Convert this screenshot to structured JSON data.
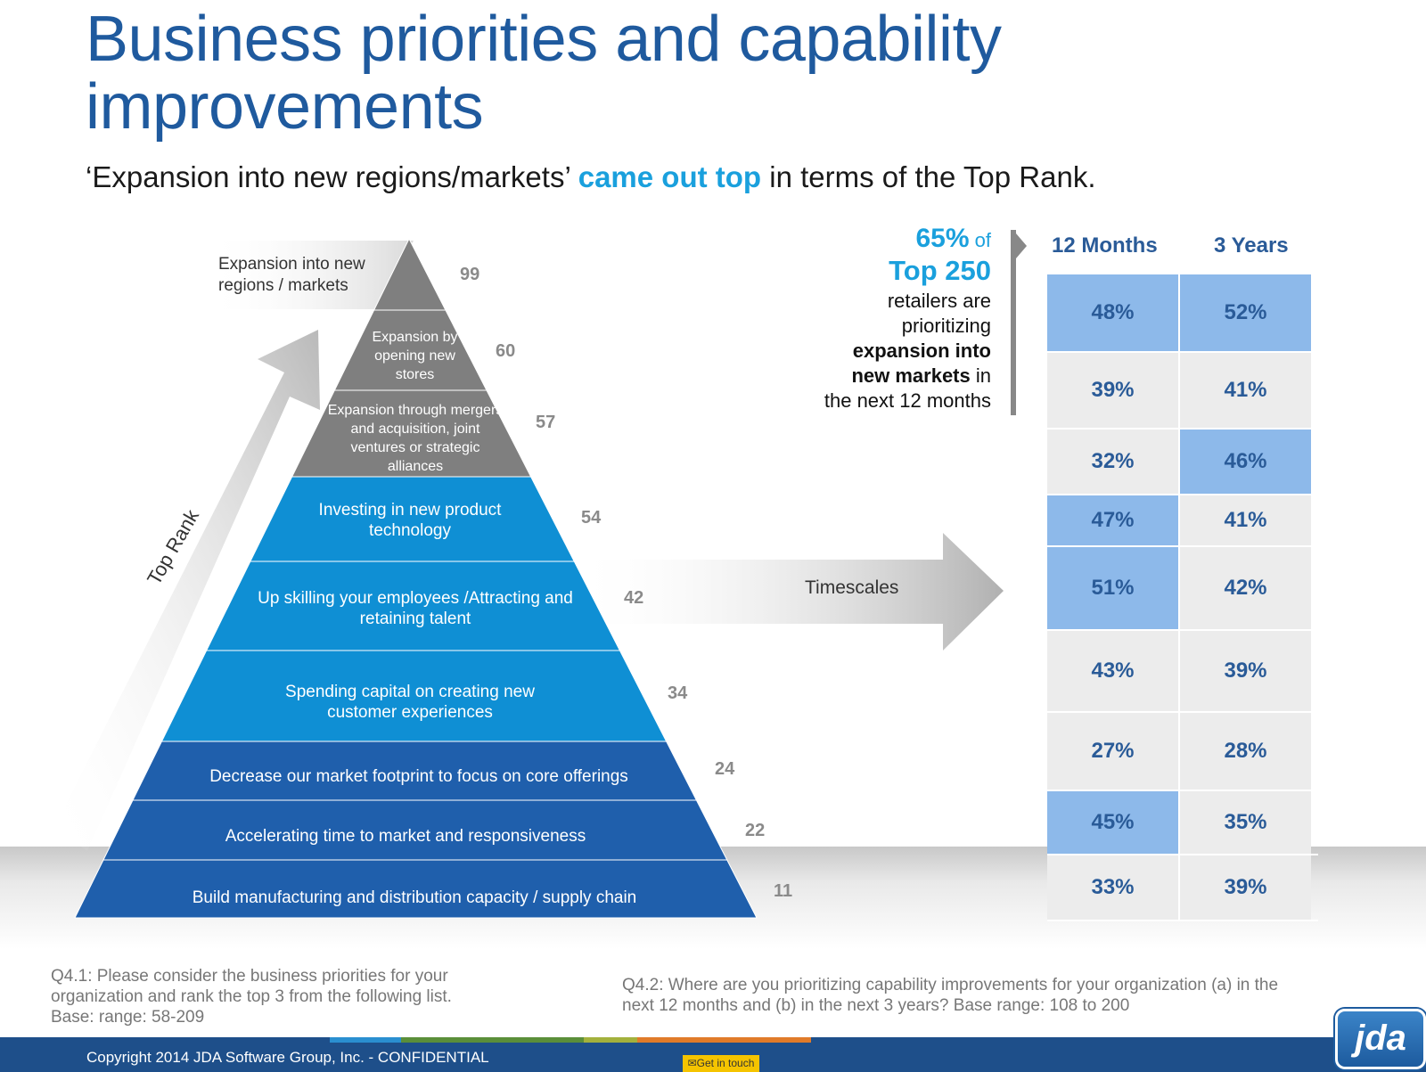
{
  "title": "Business priorities and capability improvements",
  "subtitle": {
    "before": "‘Expansion into new regions/markets’ ",
    "highlight": "came out top",
    "after": " in terms of the Top Rank."
  },
  "pyramid": {
    "axis_label": "Top Rank",
    "levels": [
      {
        "label": "Expansion into new regions / markets",
        "value": 99
      },
      {
        "label": "Expansion by opening new stores",
        "value": 60
      },
      {
        "label": "Expansion through mergers and acquisition, joint ventures or strategic alliances",
        "value": 57
      },
      {
        "label": "Investing in new product technology",
        "value": 54
      },
      {
        "label": "Up skilling your employees /Attracting and retaining talent",
        "value": 42
      },
      {
        "label": "Spending capital on creating new customer experiences",
        "value": 34
      },
      {
        "label": "Decrease our market footprint to focus on core offerings",
        "value": 24
      },
      {
        "label": "Accelerating time to market and responsiveness",
        "value": 22
      },
      {
        "label": "Build manufacturing and distribution capacity / supply chain",
        "value": 11
      }
    ],
    "colors": {
      "gray": "#7f7f7f",
      "blue": "#0f8fd4",
      "dark_blue": "#1f5fac"
    }
  },
  "arrow_label": "Timescales",
  "callout": {
    "percent": "65%",
    "of": "of",
    "top": "Top 250",
    "line1": "retailers are",
    "line2": "prioritizing",
    "bold1": "expansion into",
    "bold2": "new markets",
    "in_text": " in",
    "line3": "the next 12 months"
  },
  "table": {
    "headers": [
      "12 Months",
      "3 Years"
    ],
    "rows": [
      [
        "48%",
        "52%"
      ],
      [
        "39%",
        "41%"
      ],
      [
        "32%",
        "46%"
      ],
      [
        "47%",
        "41%"
      ],
      [
        "51%",
        "42%"
      ],
      [
        "43%",
        "39%"
      ],
      [
        "27%",
        "28%"
      ],
      [
        "45%",
        "35%"
      ],
      [
        "33%",
        "39%"
      ]
    ],
    "highlight_color": "#8db9ea",
    "base_color": "#ececec"
  },
  "notes": {
    "q41_line1": "Q4.1: Please consider the business priorities for your",
    "q41_line2": "organization and rank the top 3 from the following list.",
    "q41_line3": "Base: range: 58-209",
    "q42_line1": "Q4.2: Where are you prioritizing capability improvements for your organization (a) in the",
    "q42_line2": "next 12 months and (b) in the next 3 years? Base range: 108 to 200"
  },
  "footer": {
    "copyright": "Copyright 2014 JDA Software Group, Inc. - CONFIDENTIAL",
    "get_in_touch": "Get in touch",
    "logo": "jda",
    "bar_color": "#1e4f8a"
  }
}
